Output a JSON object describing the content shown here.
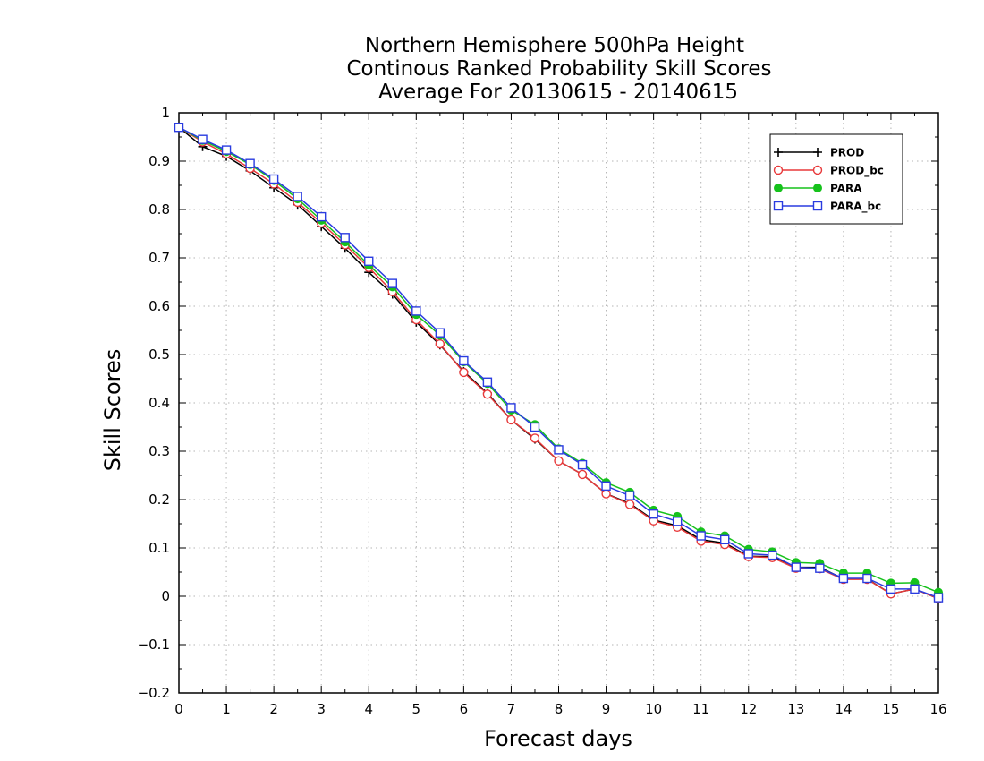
{
  "chart_data": {
    "type": "line",
    "title_lines": [
      "Northern Hemisphere 500hPa Height",
      "Continous Ranked Probability Skill Scores",
      "Average For 20130615 - 20140615"
    ],
    "xlabel": "Forecast days",
    "ylabel": "Skill Scores",
    "xlim": [
      0,
      16
    ],
    "ylim": [
      -0.2,
      1
    ],
    "xticks": [
      "0",
      "1",
      "2",
      "3",
      "4",
      "5",
      "6",
      "7",
      "8",
      "9",
      "10",
      "11",
      "12",
      "13",
      "14",
      "15",
      "16"
    ],
    "yticks": [
      "−0.2",
      "−0.1",
      "0",
      "0.1",
      "0.2",
      "0.3",
      "0.4",
      "0.5",
      "0.6",
      "0.7",
      "0.8",
      "0.9",
      "1"
    ],
    "grid": true,
    "legend_position": "top-right",
    "x": [
      0,
      0.5,
      1,
      1.5,
      2,
      2.5,
      3,
      3.5,
      4,
      4.5,
      5,
      5.5,
      6,
      6.5,
      7,
      7.5,
      8,
      8.5,
      9,
      9.5,
      10,
      10.5,
      11,
      11.5,
      12,
      12.5,
      13,
      13.5,
      14,
      14.5,
      15,
      15.5,
      16
    ],
    "series": [
      {
        "name": "PROD",
        "color": "#000000",
        "marker": "plus",
        "values": [
          0.97,
          0.93,
          0.91,
          0.88,
          0.845,
          0.81,
          0.765,
          0.72,
          0.67,
          0.625,
          0.567,
          0.52,
          0.465,
          0.42,
          0.365,
          0.325,
          0.28,
          0.252,
          0.212,
          0.192,
          0.158,
          0.146,
          0.117,
          0.11,
          0.083,
          0.082,
          0.06,
          0.06,
          0.036,
          0.036,
          0.005,
          0.015,
          -0.005
        ]
      },
      {
        "name": "PROD_bc",
        "color": "#e8393a",
        "marker": "circle",
        "values": [
          0.97,
          0.94,
          0.915,
          0.885,
          0.853,
          0.815,
          0.772,
          0.727,
          0.68,
          0.63,
          0.572,
          0.522,
          0.463,
          0.418,
          0.365,
          0.327,
          0.28,
          0.252,
          0.212,
          0.19,
          0.156,
          0.143,
          0.114,
          0.107,
          0.082,
          0.08,
          0.058,
          0.057,
          0.035,
          0.035,
          0.005,
          0.015,
          -0.005
        ]
      },
      {
        "name": "PARA",
        "color": "#16c21c",
        "marker": "filled-circle",
        "values": [
          0.97,
          0.943,
          0.92,
          0.893,
          0.86,
          0.822,
          0.778,
          0.733,
          0.685,
          0.64,
          0.583,
          0.54,
          0.485,
          0.44,
          0.385,
          0.355,
          0.305,
          0.275,
          0.235,
          0.215,
          0.178,
          0.165,
          0.133,
          0.125,
          0.097,
          0.092,
          0.07,
          0.068,
          0.048,
          0.048,
          0.027,
          0.028,
          0.008
        ]
      },
      {
        "name": "PARA_bc",
        "color": "#2a3ce0",
        "marker": "square",
        "values": [
          0.97,
          0.945,
          0.923,
          0.895,
          0.863,
          0.827,
          0.785,
          0.742,
          0.693,
          0.647,
          0.59,
          0.545,
          0.487,
          0.443,
          0.39,
          0.35,
          0.303,
          0.272,
          0.228,
          0.208,
          0.17,
          0.155,
          0.125,
          0.117,
          0.088,
          0.085,
          0.06,
          0.058,
          0.037,
          0.037,
          0.015,
          0.015,
          -0.003
        ]
      }
    ]
  }
}
